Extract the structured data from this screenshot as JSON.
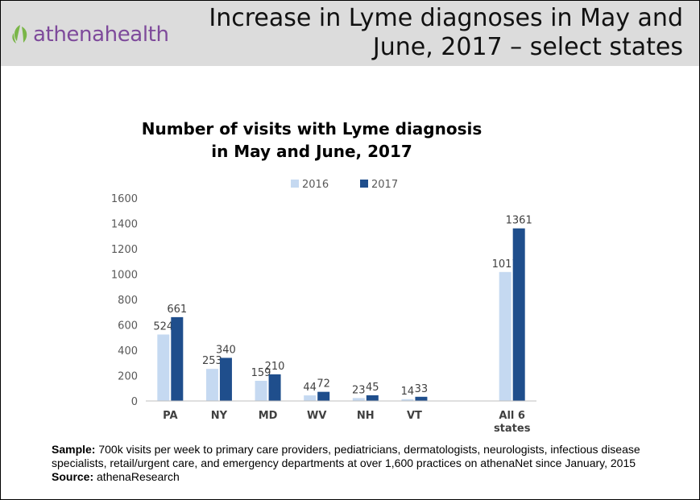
{
  "header": {
    "logo_text": "athenahealth",
    "title": "Increase in Lyme diagnoses in May and June, 2017 – select states"
  },
  "chart_data": {
    "type": "bar",
    "title_line1": "Number of visits with Lyme diagnosis",
    "title_line2": "in May and June, 2017",
    "categories": [
      "PA",
      "NY",
      "MD",
      "WV",
      "NH",
      "VT",
      "",
      "All 6\nstates"
    ],
    "series": [
      {
        "name": "2016",
        "color": "#c5d9f1",
        "values": [
          524,
          253,
          159,
          44,
          23,
          14,
          null,
          1017
        ]
      },
      {
        "name": "2017",
        "color": "#1f4e8c",
        "values": [
          661,
          340,
          210,
          72,
          45,
          33,
          null,
          1361
        ]
      }
    ],
    "yticks": [
      0,
      200,
      400,
      600,
      800,
      1000,
      1200,
      1400,
      1600
    ],
    "ylim": [
      0,
      1600
    ],
    "legend_position": "top-center",
    "grid": false
  },
  "footnote": {
    "sample_label": "Sample:",
    "sample_text": " 700k visits per week to primary care providers, pediatricians, dermatologists, neurologists, infectious disease specialists, retail/urgent care, and emergency departments at over 1,600 practices on athenaNet since January, 2015",
    "source_label": "Source:",
    "source_text": " athenaResearch"
  }
}
